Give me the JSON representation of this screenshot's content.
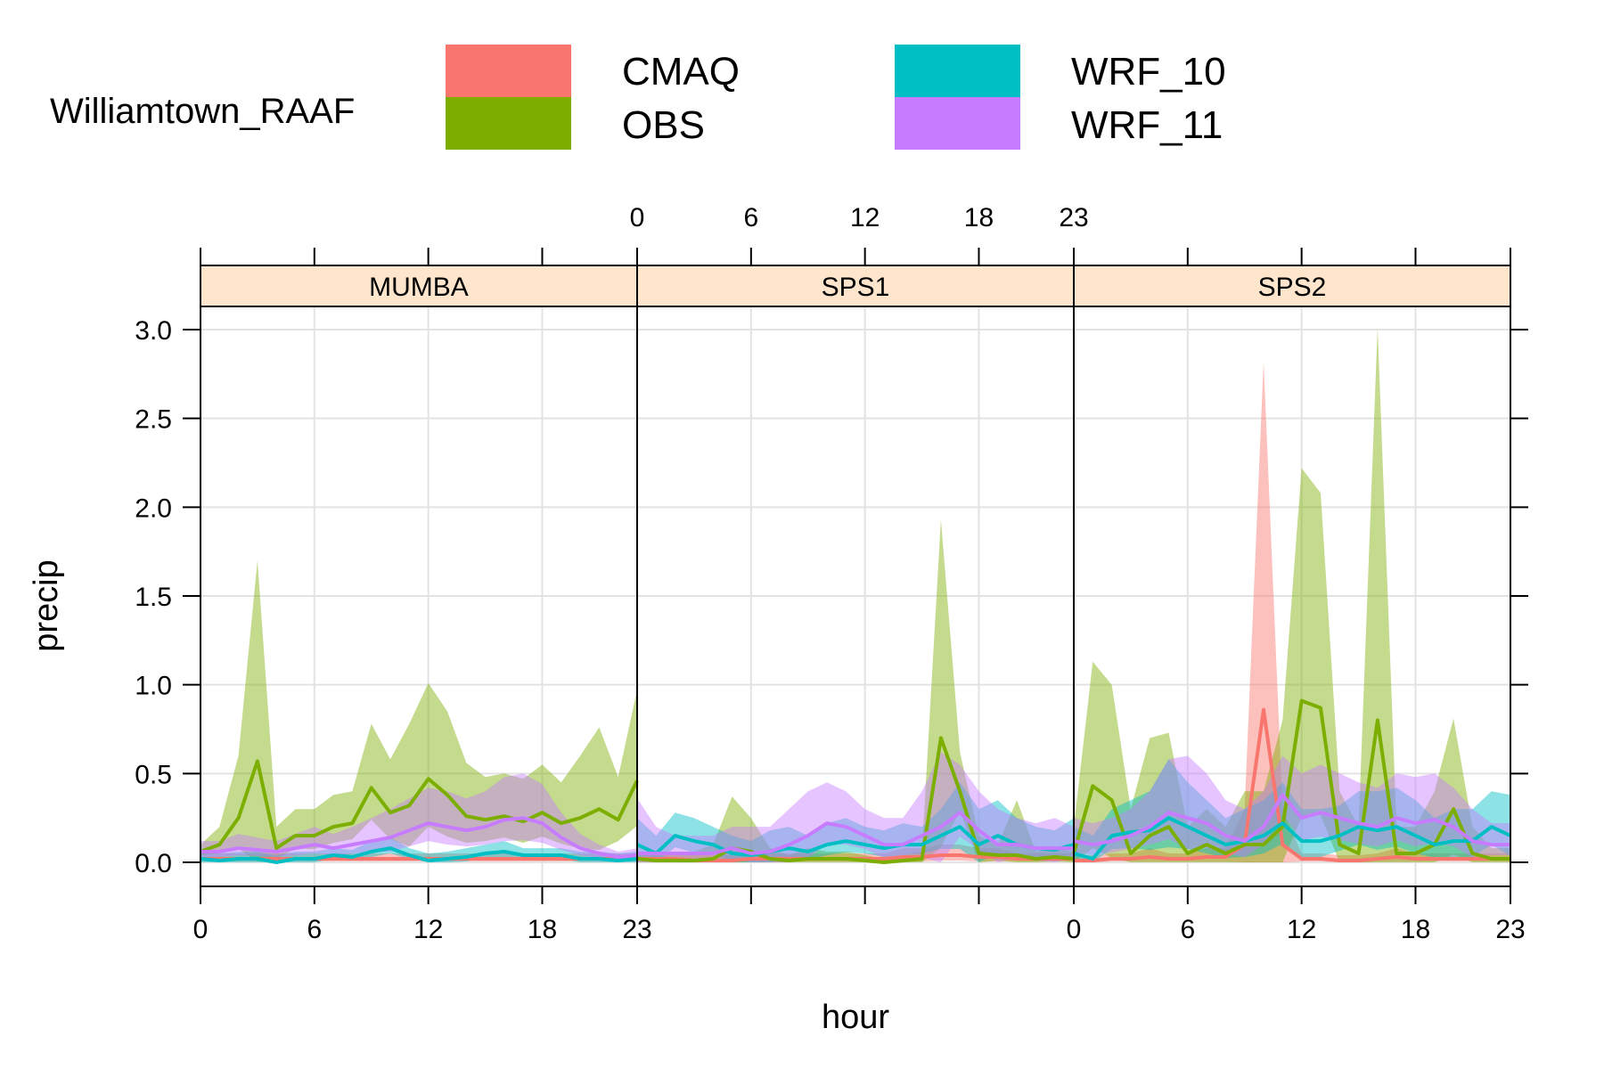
{
  "chart_data": {
    "type": "line",
    "legend": {
      "title": "Williamtown_RAAF",
      "position": "top",
      "entries": [
        {
          "name": "CMAQ",
          "color": "#F8766D"
        },
        {
          "name": "OBS",
          "color": "#7CAE00"
        },
        {
          "name": "WRF_10",
          "color": "#00BFC4"
        },
        {
          "name": "WRF_11",
          "color": "#C77CFF"
        }
      ]
    },
    "xlabel": "hour",
    "ylabel": "precip",
    "xlim": [
      0,
      23
    ],
    "ylim": [
      0,
      3.0
    ],
    "x_ticks": [
      0,
      6,
      12,
      18,
      23
    ],
    "y_ticks": [
      "0.0",
      "0.5",
      "1.0",
      "1.5",
      "2.0",
      "2.5",
      "3.0"
    ],
    "grid": true,
    "bands": "shaded range around each line",
    "panels": [
      {
        "name": "MUMBA",
        "series": [
          {
            "name": "CMAQ",
            "values": [
              0.02,
              0.02,
              0.02,
              0.02,
              0.02,
              0.02,
              0.02,
              0.02,
              0.02,
              0.02,
              0.02,
              0.02,
              0.02,
              0.02,
              0.02,
              0.02,
              0.02,
              0.02,
              0.02,
              0.02,
              0.02,
              0.02,
              0.02,
              0.02
            ],
            "upper": [
              0.05,
              0.05,
              0.05,
              0.05,
              0.05,
              0.05,
              0.05,
              0.05,
              0.05,
              0.05,
              0.05,
              0.05,
              0.05,
              0.05,
              0.05,
              0.05,
              0.05,
              0.05,
              0.05,
              0.05,
              0.05,
              0.05,
              0.05,
              0.05
            ]
          },
          {
            "name": "OBS",
            "values": [
              0.06,
              0.1,
              0.25,
              0.57,
              0.08,
              0.15,
              0.15,
              0.2,
              0.22,
              0.42,
              0.28,
              0.32,
              0.47,
              0.38,
              0.26,
              0.24,
              0.26,
              0.23,
              0.28,
              0.22,
              0.25,
              0.3,
              0.24,
              0.46
            ],
            "upper": [
              0.1,
              0.2,
              0.6,
              1.7,
              0.2,
              0.3,
              0.3,
              0.38,
              0.4,
              0.78,
              0.58,
              0.78,
              1.01,
              0.85,
              0.56,
              0.48,
              0.5,
              0.47,
              0.55,
              0.45,
              0.6,
              0.76,
              0.48,
              0.97
            ]
          },
          {
            "name": "WRF_10",
            "values": [
              0.02,
              0.01,
              0.02,
              0.02,
              0.0,
              0.02,
              0.02,
              0.04,
              0.03,
              0.06,
              0.08,
              0.04,
              0.01,
              0.02,
              0.03,
              0.05,
              0.06,
              0.04,
              0.04,
              0.04,
              0.02,
              0.02,
              0.01,
              0.02
            ],
            "upper": [
              0.06,
              0.05,
              0.06,
              0.06,
              0.04,
              0.06,
              0.06,
              0.08,
              0.07,
              0.12,
              0.14,
              0.08,
              0.05,
              0.06,
              0.08,
              0.1,
              0.12,
              0.08,
              0.08,
              0.08,
              0.06,
              0.06,
              0.05,
              0.06
            ]
          },
          {
            "name": "WRF_11",
            "values": [
              0.06,
              0.06,
              0.08,
              0.07,
              0.06,
              0.08,
              0.1,
              0.08,
              0.1,
              0.12,
              0.14,
              0.18,
              0.22,
              0.2,
              0.18,
              0.2,
              0.24,
              0.25,
              0.22,
              0.14,
              0.08,
              0.05,
              0.03,
              0.04
            ],
            "upper": [
              0.12,
              0.12,
              0.16,
              0.14,
              0.12,
              0.16,
              0.2,
              0.16,
              0.2,
              0.25,
              0.3,
              0.36,
              0.42,
              0.4,
              0.36,
              0.4,
              0.48,
              0.5,
              0.44,
              0.28,
              0.16,
              0.1,
              0.06,
              0.08
            ]
          }
        ]
      },
      {
        "name": "SPS1",
        "series": [
          {
            "name": "CMAQ",
            "values": [
              0.02,
              0.02,
              0.02,
              0.01,
              0.01,
              0.01,
              0.02,
              0.02,
              0.02,
              0.02,
              0.02,
              0.02,
              0.02,
              0.02,
              0.03,
              0.03,
              0.04,
              0.04,
              0.03,
              0.03,
              0.02,
              0.02,
              0.02,
              0.02
            ],
            "upper": [
              0.05,
              0.05,
              0.05,
              0.04,
              0.04,
              0.04,
              0.05,
              0.05,
              0.05,
              0.05,
              0.05,
              0.05,
              0.05,
              0.05,
              0.08,
              0.08,
              0.1,
              0.1,
              0.08,
              0.08,
              0.05,
              0.05,
              0.05,
              0.05
            ]
          },
          {
            "name": "OBS",
            "values": [
              0.02,
              0.01,
              0.01,
              0.01,
              0.02,
              0.08,
              0.06,
              0.02,
              0.01,
              0.02,
              0.02,
              0.02,
              0.01,
              0.0,
              0.01,
              0.02,
              0.7,
              0.4,
              0.05,
              0.04,
              0.04,
              0.02,
              0.03,
              0.02
            ],
            "upper": [
              0.06,
              0.04,
              0.04,
              0.06,
              0.1,
              0.37,
              0.25,
              0.08,
              0.04,
              0.08,
              0.06,
              0.06,
              0.04,
              0.02,
              0.04,
              0.06,
              1.93,
              0.62,
              0.15,
              0.1,
              0.35,
              0.06,
              0.08,
              0.06
            ]
          },
          {
            "name": "WRF_10",
            "values": [
              0.1,
              0.05,
              0.15,
              0.12,
              0.1,
              0.05,
              0.04,
              0.06,
              0.08,
              0.06,
              0.1,
              0.12,
              0.1,
              0.08,
              0.1,
              0.1,
              0.15,
              0.2,
              0.1,
              0.15,
              0.1,
              0.08,
              0.07,
              0.1
            ],
            "upper": [
              0.25,
              0.15,
              0.28,
              0.25,
              0.2,
              0.15,
              0.12,
              0.18,
              0.2,
              0.15,
              0.22,
              0.25,
              0.2,
              0.18,
              0.22,
              0.2,
              0.3,
              0.45,
              0.3,
              0.35,
              0.25,
              0.2,
              0.18,
              0.25
            ]
          },
          {
            "name": "WRF_11",
            "values": [
              0.05,
              0.05,
              0.05,
              0.05,
              0.05,
              0.08,
              0.05,
              0.06,
              0.1,
              0.15,
              0.22,
              0.2,
              0.15,
              0.1,
              0.1,
              0.15,
              0.2,
              0.28,
              0.18,
              0.1,
              0.1,
              0.08,
              0.08,
              0.08
            ],
            "upper": [
              0.36,
              0.2,
              0.15,
              0.15,
              0.15,
              0.2,
              0.2,
              0.2,
              0.3,
              0.4,
              0.45,
              0.4,
              0.3,
              0.25,
              0.25,
              0.4,
              0.62,
              0.55,
              0.4,
              0.3,
              0.25,
              0.22,
              0.25,
              0.2
            ]
          }
        ]
      },
      {
        "name": "SPS2",
        "series": [
          {
            "name": "CMAQ",
            "values": [
              0.01,
              0.01,
              0.02,
              0.02,
              0.03,
              0.02,
              0.02,
              0.03,
              0.03,
              0.1,
              0.86,
              0.1,
              0.02,
              0.02,
              0.01,
              0.01,
              0.02,
              0.03,
              0.02,
              0.02,
              0.02,
              0.02,
              0.02,
              0.02
            ],
            "upper": [
              0.04,
              0.04,
              0.05,
              0.05,
              0.08,
              0.05,
              0.05,
              0.08,
              0.08,
              0.3,
              2.82,
              0.3,
              0.05,
              0.05,
              0.04,
              0.04,
              0.05,
              0.08,
              0.05,
              0.05,
              0.05,
              0.05,
              0.05,
              0.05
            ]
          },
          {
            "name": "OBS",
            "values": [
              0.05,
              0.43,
              0.35,
              0.05,
              0.15,
              0.2,
              0.05,
              0.1,
              0.05,
              0.1,
              0.1,
              0.2,
              0.91,
              0.87,
              0.1,
              0.05,
              0.8,
              0.05,
              0.05,
              0.1,
              0.3,
              0.05,
              0.02,
              0.02
            ],
            "upper": [
              0.2,
              1.13,
              1.0,
              0.3,
              0.7,
              0.73,
              0.2,
              0.3,
              0.2,
              0.4,
              0.4,
              0.8,
              2.22,
              2.08,
              0.4,
              0.2,
              3.01,
              0.2,
              0.2,
              0.4,
              0.81,
              0.2,
              0.08,
              0.08
            ]
          },
          {
            "name": "WRF_10",
            "values": [
              0.05,
              0.02,
              0.15,
              0.17,
              0.18,
              0.25,
              0.2,
              0.15,
              0.1,
              0.12,
              0.15,
              0.22,
              0.12,
              0.12,
              0.15,
              0.2,
              0.18,
              0.2,
              0.15,
              0.1,
              0.12,
              0.12,
              0.2,
              0.15
            ],
            "upper": [
              0.2,
              0.15,
              0.3,
              0.35,
              0.4,
              0.58,
              0.45,
              0.35,
              0.25,
              0.3,
              0.35,
              0.45,
              0.3,
              0.3,
              0.32,
              0.4,
              0.4,
              0.42,
              0.35,
              0.25,
              0.3,
              0.3,
              0.4,
              0.38
            ]
          },
          {
            "name": "WRF_11",
            "values": [
              0.12,
              0.1,
              0.12,
              0.15,
              0.2,
              0.28,
              0.25,
              0.22,
              0.15,
              0.12,
              0.2,
              0.38,
              0.25,
              0.28,
              0.25,
              0.22,
              0.2,
              0.25,
              0.22,
              0.24,
              0.2,
              0.12,
              0.1,
              0.1
            ],
            "upper": [
              0.25,
              0.22,
              0.25,
              0.3,
              0.4,
              0.58,
              0.6,
              0.5,
              0.35,
              0.3,
              0.4,
              0.6,
              0.5,
              0.55,
              0.5,
              0.45,
              0.42,
              0.5,
              0.48,
              0.5,
              0.42,
              0.3,
              0.22,
              0.22
            ]
          }
        ]
      }
    ]
  }
}
